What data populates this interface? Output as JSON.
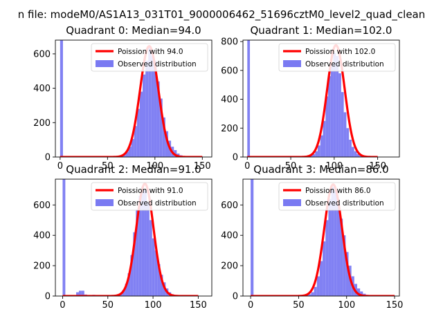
{
  "suptitle": "n file: modeM0/AS1A13_031T01_9000006462_51696cztM0_level2_quad_clean",
  "colors": {
    "hist": "#7a7af2",
    "poisson": "#ff0000"
  },
  "chart_data": [
    {
      "type": "bar",
      "title": "Quadrant 0: Median=94.0",
      "median": 94.0,
      "xlim": [
        -5,
        160
      ],
      "ylim": [
        0,
        680
      ],
      "xticks": [
        0,
        50,
        100,
        150
      ],
      "yticks": [
        0,
        200,
        400,
        600
      ],
      "bin_width": 3,
      "legend": {
        "position": "top-right",
        "entries": [
          "Poission with 94.0",
          "Observed distribution"
        ]
      },
      "series": [
        {
          "name": "Poission with 94.0",
          "kind": "line",
          "lambda": 94.0,
          "peak": 645
        },
        {
          "name": "Observed distribution",
          "kind": "hist",
          "bins": [
            [
              0,
              680
            ],
            [
              60,
              2
            ],
            [
              63,
              5
            ],
            [
              66,
              12
            ],
            [
              69,
              30
            ],
            [
              72,
              60
            ],
            [
              75,
              105
            ],
            [
              78,
              180
            ],
            [
              81,
              280
            ],
            [
              84,
              380
            ],
            [
              87,
              480
            ],
            [
              90,
              560
            ],
            [
              93,
              640
            ],
            [
              96,
              590
            ],
            [
              99,
              560
            ],
            [
              102,
              440
            ],
            [
              105,
              340
            ],
            [
              108,
              230
            ],
            [
              111,
              150
            ],
            [
              114,
              95
            ],
            [
              117,
              60
            ],
            [
              120,
              40
            ],
            [
              123,
              20
            ],
            [
              126,
              10
            ],
            [
              129,
              5
            ]
          ]
        }
      ]
    },
    {
      "type": "bar",
      "title": "Quadrant 1: Median=102.0",
      "median": 102.0,
      "xlim": [
        -5,
        175
      ],
      "ylim": [
        0,
        810
      ],
      "xticks": [
        0,
        50,
        100,
        150
      ],
      "yticks": [
        0,
        200,
        400,
        600,
        800
      ],
      "bin_width": 3,
      "legend": {
        "position": "top-right",
        "entries": [
          "Poission with 102.0",
          "Observed distribution"
        ]
      },
      "series": [
        {
          "name": "Poission with 102.0",
          "kind": "line",
          "lambda": 102.0,
          "peak": 775
        },
        {
          "name": "Observed distribution",
          "kind": "hist",
          "bins": [
            [
              0,
              810
            ],
            [
              66,
              2
            ],
            [
              69,
              5
            ],
            [
              72,
              10
            ],
            [
              75,
              20
            ],
            [
              78,
              40
            ],
            [
              81,
              80
            ],
            [
              84,
              150
            ],
            [
              87,
              250
            ],
            [
              90,
              420
            ],
            [
              93,
              560
            ],
            [
              96,
              650
            ],
            [
              99,
              720
            ],
            [
              102,
              700
            ],
            [
              105,
              580
            ],
            [
              108,
              450
            ],
            [
              111,
              310
            ],
            [
              114,
              200
            ],
            [
              117,
              120
            ],
            [
              120,
              70
            ],
            [
              123,
              40
            ],
            [
              126,
              20
            ],
            [
              129,
              10
            ],
            [
              132,
              5
            ],
            [
              135,
              2
            ]
          ]
        }
      ]
    },
    {
      "type": "bar",
      "title": "Quadrant 2: Median=91.0",
      "median": 91.0,
      "xlim": [
        -8,
        165
      ],
      "ylim": [
        0,
        770
      ],
      "xticks": [
        0,
        50,
        100,
        150
      ],
      "yticks": [
        0,
        200,
        400,
        600
      ],
      "bin_width": 3,
      "legend": {
        "position": "top-right",
        "entries": [
          "Poission with 91.0",
          "Observed distribution"
        ]
      },
      "series": [
        {
          "name": "Poission with 91.0",
          "kind": "line",
          "lambda": 91.0,
          "peak": 740
        },
        {
          "name": "Observed distribution",
          "kind": "hist",
          "bins": [
            [
              0,
              770
            ],
            [
              15,
              25
            ],
            [
              18,
              35
            ],
            [
              21,
              35
            ],
            [
              24,
              10
            ],
            [
              33,
              8
            ],
            [
              42,
              5
            ],
            [
              48,
              5
            ],
            [
              54,
              5
            ],
            [
              57,
              8
            ],
            [
              60,
              12
            ],
            [
              63,
              20
            ],
            [
              66,
              40
            ],
            [
              69,
              80
            ],
            [
              72,
              150
            ],
            [
              75,
              270
            ],
            [
              78,
              420
            ],
            [
              81,
              570
            ],
            [
              84,
              660
            ],
            [
              87,
              720
            ],
            [
              90,
              700
            ],
            [
              93,
              620
            ],
            [
              96,
              500
            ],
            [
              99,
              380
            ],
            [
              102,
              300
            ],
            [
              105,
              210
            ],
            [
              108,
              140
            ],
            [
              111,
              90
            ],
            [
              114,
              50
            ],
            [
              117,
              25
            ],
            [
              120,
              12
            ],
            [
              123,
              5
            ]
          ]
        }
      ]
    },
    {
      "type": "bar",
      "title": "Quadrant 3: Median=86.0",
      "median": 86.0,
      "xlim": [
        -8,
        155
      ],
      "ylim": [
        0,
        770
      ],
      "xticks": [
        0,
        50,
        100,
        150
      ],
      "yticks": [
        0,
        200,
        400,
        600
      ],
      "bin_width": 3,
      "legend": {
        "position": "top-right",
        "entries": [
          "Poission with 86.0",
          "Observed distribution"
        ]
      },
      "series": [
        {
          "name": "Poission with 86.0",
          "kind": "line",
          "lambda": 86.0,
          "peak": 735
        },
        {
          "name": "Observed distribution",
          "kind": "hist",
          "bins": [
            [
              0,
              770
            ],
            [
              54,
              2
            ],
            [
              57,
              5
            ],
            [
              60,
              12
            ],
            [
              63,
              25
            ],
            [
              66,
              60
            ],
            [
              69,
              130
            ],
            [
              72,
              230
            ],
            [
              75,
              360
            ],
            [
              78,
              500
            ],
            [
              81,
              640
            ],
            [
              84,
              720
            ],
            [
              87,
              690
            ],
            [
              90,
              610
            ],
            [
              93,
              510
            ],
            [
              96,
              400
            ],
            [
              99,
              290
            ],
            [
              102,
              200
            ],
            [
              105,
              130
            ],
            [
              108,
              80
            ],
            [
              111,
              50
            ],
            [
              114,
              30
            ],
            [
              117,
              15
            ],
            [
              120,
              8
            ],
            [
              123,
              4
            ]
          ]
        }
      ]
    }
  ]
}
